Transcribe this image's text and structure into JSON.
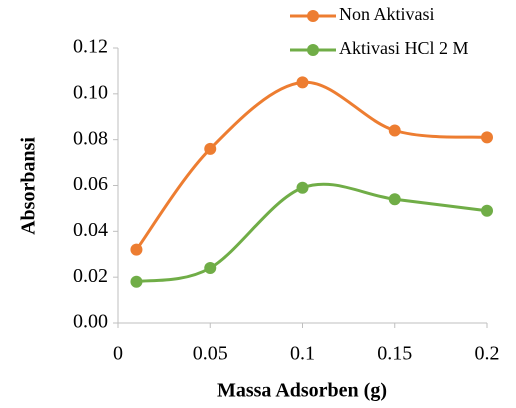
{
  "chart_data": {
    "type": "line",
    "x_label": "Massa Adsorben (g)",
    "y_label": "Absorbansi",
    "x": [
      0.01,
      0.05,
      0.1,
      0.15,
      0.2
    ],
    "series": [
      {
        "name": "Non Aktivasi",
        "color": "#ed7d31",
        "values": [
          0.032,
          0.076,
          0.105,
          0.084,
          0.081
        ]
      },
      {
        "name": "Aktivasi HCl 2 M",
        "color": "#70ad47",
        "values": [
          0.018,
          0.024,
          0.059,
          0.054,
          0.049
        ]
      }
    ],
    "xlim": [
      0,
      0.2
    ],
    "xticks": [
      0,
      0.05,
      0.1,
      0.15,
      0.2
    ],
    "ylim": [
      0,
      0.12
    ],
    "yticks": [
      {
        "value": 0,
        "label": "0.00"
      },
      {
        "value": 0.02,
        "label": "0.02"
      },
      {
        "value": 0.04,
        "label": "0.04"
      },
      {
        "value": 0.06,
        "label": "0.06"
      },
      {
        "value": 0.08,
        "label": "0.08"
      },
      {
        "value": 0.1,
        "label": "0.10"
      },
      {
        "value": 0.12,
        "label": "0.12"
      }
    ],
    "smooth": true,
    "grid": false,
    "legend": "top-right"
  }
}
